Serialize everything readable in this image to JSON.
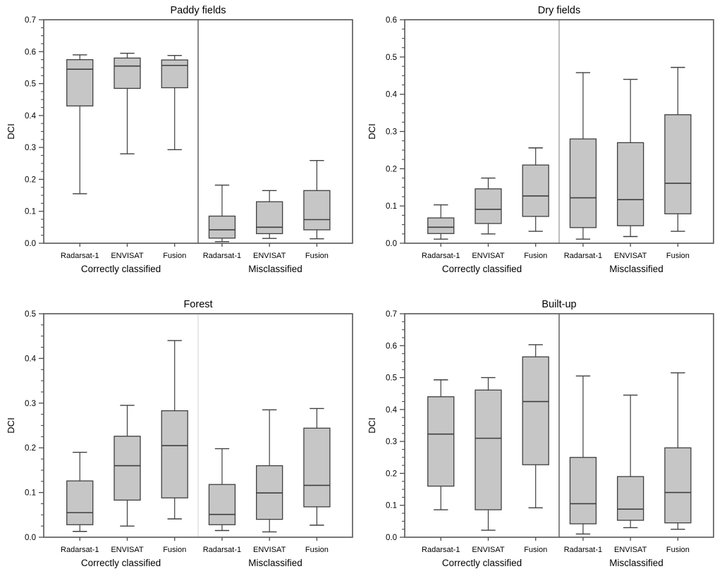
{
  "figure": {
    "ylabel": "DCI",
    "group_labels": [
      "Correctly classified",
      "Misclassified"
    ],
    "category_labels": [
      "Radarsat-1",
      "ENVISAT",
      "Fusion"
    ]
  },
  "styles": {
    "background": "#ffffff",
    "box_fill": "#c6c6c6",
    "line_color": "#3f3f3f",
    "frame_color": "#555555",
    "tick_color": "#4d4d4d",
    "text_color": "#000000"
  },
  "chart_data": [
    {
      "type": "box",
      "title": "Paddy fields",
      "ylabel": "DCI",
      "ylim": [
        0.0,
        0.7
      ],
      "ytick_values": [
        0.0,
        0.1,
        0.2,
        0.3,
        0.4,
        0.5,
        0.6,
        0.7
      ],
      "ytick_labels": [
        "0.0",
        "0.1",
        "0.2",
        "0.3",
        "0.4",
        "0.5",
        "0.6",
        "0.7"
      ],
      "ytick_minor_interval": 0.025,
      "grid": false,
      "separator_color": "#4a4a4a",
      "groups": [
        "Correctly classified",
        "Misclassified"
      ],
      "categories": [
        "Radarsat-1",
        "ENVISAT",
        "Fusion",
        "Radarsat-1",
        "ENVISAT",
        "Fusion"
      ],
      "boxes": [
        {
          "group": "Correctly classified",
          "category": "Radarsat-1",
          "whisker_low": 0.155,
          "q1": 0.43,
          "median": 0.545,
          "q3": 0.575,
          "whisker_high": 0.59
        },
        {
          "group": "Correctly classified",
          "category": "ENVISAT",
          "whisker_low": 0.28,
          "q1": 0.485,
          "median": 0.555,
          "q3": 0.58,
          "whisker_high": 0.595
        },
        {
          "group": "Correctly classified",
          "category": "Fusion",
          "whisker_low": 0.293,
          "q1": 0.487,
          "median": 0.557,
          "q3": 0.574,
          "whisker_high": 0.588
        },
        {
          "group": "Misclassified",
          "category": "Radarsat-1",
          "whisker_low": 0.005,
          "q1": 0.016,
          "median": 0.042,
          "q3": 0.085,
          "whisker_high": 0.182
        },
        {
          "group": "Misclassified",
          "category": "ENVISAT",
          "whisker_low": 0.015,
          "q1": 0.03,
          "median": 0.05,
          "q3": 0.13,
          "whisker_high": 0.165
        },
        {
          "group": "Misclassified",
          "category": "Fusion",
          "whisker_low": 0.014,
          "q1": 0.042,
          "median": 0.074,
          "q3": 0.165,
          "whisker_high": 0.259
        }
      ]
    },
    {
      "type": "box",
      "title": "Dry fields",
      "ylabel": "DCI",
      "ylim": [
        0.0,
        0.6
      ],
      "ytick_values": [
        0.0,
        0.1,
        0.2,
        0.3,
        0.4,
        0.5,
        0.6
      ],
      "ytick_labels": [
        "0.0",
        "0.1",
        "0.2",
        "0.3",
        "0.4",
        "0.5",
        "0.6"
      ],
      "ytick_minor_interval": 0.025,
      "grid": false,
      "separator_color": "#9a9a9a",
      "groups": [
        "Correctly classified",
        "Misclassified"
      ],
      "categories": [
        "Radarsat-1",
        "ENVISAT",
        "Fusion",
        "Radarsat-1",
        "ENVISAT",
        "Fusion"
      ],
      "boxes": [
        {
          "group": "Correctly classified",
          "category": "Radarsat-1",
          "whisker_low": 0.011,
          "q1": 0.026,
          "median": 0.043,
          "q3": 0.068,
          "whisker_high": 0.103
        },
        {
          "group": "Correctly classified",
          "category": "ENVISAT",
          "whisker_low": 0.025,
          "q1": 0.053,
          "median": 0.091,
          "q3": 0.146,
          "whisker_high": 0.175
        },
        {
          "group": "Correctly classified",
          "category": "Fusion",
          "whisker_low": 0.032,
          "q1": 0.072,
          "median": 0.127,
          "q3": 0.21,
          "whisker_high": 0.256
        },
        {
          "group": "Misclassified",
          "category": "Radarsat-1",
          "whisker_low": 0.011,
          "q1": 0.042,
          "median": 0.122,
          "q3": 0.28,
          "whisker_high": 0.458
        },
        {
          "group": "Misclassified",
          "category": "ENVISAT",
          "whisker_low": 0.018,
          "q1": 0.047,
          "median": 0.117,
          "q3": 0.27,
          "whisker_high": 0.44
        },
        {
          "group": "Misclassified",
          "category": "Fusion",
          "whisker_low": 0.032,
          "q1": 0.079,
          "median": 0.161,
          "q3": 0.345,
          "whisker_high": 0.472
        }
      ]
    },
    {
      "type": "box",
      "title": "Forest",
      "ylabel": "DCI",
      "ylim": [
        0.0,
        0.5
      ],
      "ytick_values": [
        0.0,
        0.1,
        0.2,
        0.3,
        0.4,
        0.5
      ],
      "ytick_labels": [
        "0.0",
        "0.1",
        "0.2",
        "0.3",
        "0.4",
        "0.5"
      ],
      "ytick_minor_interval": 0.025,
      "grid": false,
      "separator_color": "#dcdcdc",
      "groups": [
        "Correctly classified",
        "Misclassified"
      ],
      "categories": [
        "Radarsat-1",
        "ENVISAT",
        "Fusion",
        "Radarsat-1",
        "ENVISAT",
        "Fusion"
      ],
      "boxes": [
        {
          "group": "Correctly classified",
          "category": "Radarsat-1",
          "whisker_low": 0.013,
          "q1": 0.028,
          "median": 0.055,
          "q3": 0.126,
          "whisker_high": 0.19
        },
        {
          "group": "Correctly classified",
          "category": "ENVISAT",
          "whisker_low": 0.025,
          "q1": 0.083,
          "median": 0.16,
          "q3": 0.226,
          "whisker_high": 0.295
        },
        {
          "group": "Correctly classified",
          "category": "Fusion",
          "whisker_low": 0.041,
          "q1": 0.088,
          "median": 0.205,
          "q3": 0.283,
          "whisker_high": 0.44
        },
        {
          "group": "Misclassified",
          "category": "Radarsat-1",
          "whisker_low": 0.015,
          "q1": 0.028,
          "median": 0.051,
          "q3": 0.118,
          "whisker_high": 0.198
        },
        {
          "group": "Misclassified",
          "category": "ENVISAT",
          "whisker_low": 0.012,
          "q1": 0.04,
          "median": 0.099,
          "q3": 0.16,
          "whisker_high": 0.285
        },
        {
          "group": "Misclassified",
          "category": "Fusion",
          "whisker_low": 0.027,
          "q1": 0.068,
          "median": 0.116,
          "q3": 0.244,
          "whisker_high": 0.288
        }
      ]
    },
    {
      "type": "box",
      "title": "Built-up",
      "ylabel": "DCI",
      "ylim": [
        0.0,
        0.7
      ],
      "ytick_values": [
        0.0,
        0.1,
        0.2,
        0.3,
        0.4,
        0.5,
        0.6,
        0.7
      ],
      "ytick_labels": [
        "0.0",
        "0.1",
        "0.2",
        "0.3",
        "0.4",
        "0.5",
        "0.6",
        "0.7"
      ],
      "ytick_minor_interval": 0.025,
      "grid": false,
      "separator_color": "#4a4a4a",
      "groups": [
        "Correctly classified",
        "Misclassified"
      ],
      "categories": [
        "Radarsat-1",
        "ENVISAT",
        "Fusion",
        "Radarsat-1",
        "ENVISAT",
        "Fusion"
      ],
      "boxes": [
        {
          "group": "Correctly classified",
          "category": "Radarsat-1",
          "whisker_low": 0.086,
          "q1": 0.16,
          "median": 0.323,
          "q3": 0.44,
          "whisker_high": 0.493
        },
        {
          "group": "Correctly classified",
          "category": "ENVISAT",
          "whisker_low": 0.022,
          "q1": 0.086,
          "median": 0.31,
          "q3": 0.461,
          "whisker_high": 0.5
        },
        {
          "group": "Correctly classified",
          "category": "Fusion",
          "whisker_low": 0.092,
          "q1": 0.227,
          "median": 0.425,
          "q3": 0.565,
          "whisker_high": 0.603
        },
        {
          "group": "Misclassified",
          "category": "Radarsat-1",
          "whisker_low": 0.01,
          "q1": 0.042,
          "median": 0.105,
          "q3": 0.25,
          "whisker_high": 0.505
        },
        {
          "group": "Misclassified",
          "category": "ENVISAT",
          "whisker_low": 0.03,
          "q1": 0.053,
          "median": 0.088,
          "q3": 0.19,
          "whisker_high": 0.445
        },
        {
          "group": "Misclassified",
          "category": "Fusion",
          "whisker_low": 0.025,
          "q1": 0.045,
          "median": 0.14,
          "q3": 0.28,
          "whisker_high": 0.515
        }
      ]
    }
  ]
}
